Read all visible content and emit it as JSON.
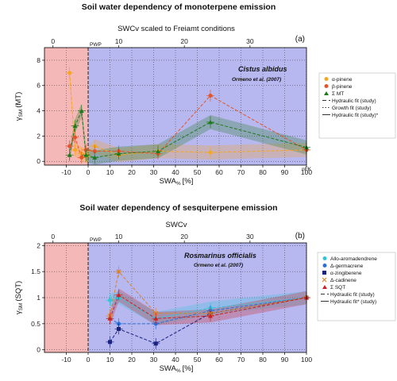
{
  "chart_data": [
    {
      "type": "scatter",
      "title": "Soil water dependency of monoterpene emission",
      "panel_label": "(a)",
      "xlabel": "SWA",
      "xlabel_sub": "%",
      "xlabel_unit": "[%]",
      "ylabel": "γ",
      "ylabel_sub": "SM",
      "ylabel_unit": "(MT)",
      "top_axis_label": "SWCv scaled to Freiamt conditions",
      "top_axis_ticks": [
        0,
        10,
        20,
        30
      ],
      "top_axis_range": [
        -1.3,
        38.6
      ],
      "xlim": [
        -20,
        100
      ],
      "ylim": [
        -0.3,
        9
      ],
      "x_ticks": [
        -10,
        0,
        10,
        20,
        30,
        40,
        50,
        60,
        70,
        80,
        90,
        100
      ],
      "y_ticks": [
        0,
        2,
        4,
        6,
        8
      ],
      "pwp_label": "PWP",
      "pwp_x": 0,
      "nfk_label": "nFK",
      "nfk_x": 100,
      "species_label": "Cistus albidus",
      "reference_label": "Ormeno et al. (2007)",
      "legend_position": "right",
      "series": [
        {
          "name": "α-pinene",
          "color": "#f5a623",
          "marker": "circle",
          "points": [
            [
              -8.5,
              7.0
            ],
            [
              -6,
              0.9
            ],
            [
              -3,
              0.6
            ],
            [
              -1,
              0.4
            ],
            [
              3,
              1.2
            ],
            [
              14,
              0.5
            ],
            [
              32,
              0.8
            ],
            [
              56,
              0.7
            ],
            [
              100,
              0.9
            ]
          ]
        },
        {
          "name": "β-pinene",
          "color": "#e2552a",
          "marker": "circle",
          "points": [
            [
              -8.5,
              1.2
            ],
            [
              -6,
              1.9
            ],
            [
              -3,
              0.3
            ],
            [
              -1,
              0.9
            ],
            [
              3,
              0.8
            ],
            [
              14,
              0.8
            ],
            [
              32,
              0.6
            ],
            [
              56,
              5.2
            ],
            [
              100,
              0.9
            ]
          ]
        },
        {
          "name": "Σ MT",
          "color": "#1f7a1f",
          "marker": "triangle",
          "points": [
            [
              -8.5,
              0.5
            ],
            [
              -6,
              2.8
            ],
            [
              -3,
              4.0
            ],
            [
              -1,
              0.5
            ],
            [
              3,
              0.3
            ],
            [
              14,
              0.6
            ],
            [
              32,
              0.8
            ],
            [
              56,
              3.1
            ],
            [
              100,
              1.1
            ]
          ]
        }
      ],
      "fit_lines": [
        {
          "name": "Hydraulic fit (study)",
          "style": "dashed"
        },
        {
          "name": "Growth fit (study)",
          "style": "dotted"
        },
        {
          "name": "Hydraulic fit (study)*",
          "style": "long-dash"
        }
      ]
    },
    {
      "type": "scatter",
      "title": "Soil water dependency of sesquiterpene emission",
      "panel_label": "(b)",
      "xlabel": "SWA",
      "xlabel_sub": "%",
      "xlabel_unit": "[%]",
      "ylabel": "γ",
      "ylabel_sub": "SM",
      "ylabel_unit": "(SQT)",
      "top_axis_label": "SWCv",
      "top_axis_ticks": [
        0,
        10,
        20,
        30
      ],
      "top_axis_range": [
        -1.3,
        38.6
      ],
      "xlim": [
        -20,
        100
      ],
      "ylim": [
        -0.05,
        2.05
      ],
      "x_ticks": [
        -10,
        0,
        10,
        20,
        30,
        40,
        50,
        60,
        70,
        80,
        90,
        100
      ],
      "y_ticks": [
        0,
        0.5,
        1,
        1.5,
        2
      ],
      "pwp_label": "PWP",
      "pwp_x": 0,
      "species_label": "Rosmarinus officialis",
      "reference_label": "Ormeno et al. (2007)",
      "legend_position": "right",
      "series": [
        {
          "name": "Allo-aromadendrene",
          "color": "#33c4d6",
          "marker": "circle",
          "points": [
            [
              10,
              0.95
            ],
            [
              14,
              1.0
            ],
            [
              31,
              0.6
            ],
            [
              56,
              0.8
            ],
            [
              100,
              1.0
            ]
          ]
        },
        {
          "name": "Δ-germacrene",
          "color": "#2a6fdb",
          "marker": "circle",
          "points": [
            [
              10,
              0.6
            ],
            [
              14,
              0.5
            ],
            [
              31,
              0.5
            ],
            [
              56,
              0.75
            ],
            [
              100,
              1.0
            ]
          ]
        },
        {
          "name": "α-zingiberene",
          "color": "#1a237e",
          "marker": "square",
          "points": [
            [
              10,
              0.15
            ],
            [
              14,
              0.4
            ],
            [
              31,
              0.12
            ],
            [
              56,
              0.7
            ],
            [
              100,
              1.0
            ]
          ]
        },
        {
          "name": "Δ-cadinene",
          "color": "#d9822b",
          "marker": "x",
          "points": [
            [
              10,
              0.65
            ],
            [
              14,
              1.5
            ],
            [
              31,
              0.7
            ],
            [
              56,
              0.7
            ],
            [
              100,
              1.0
            ]
          ]
        },
        {
          "name": "Σ SQT",
          "color": "#cc2222",
          "marker": "triangle",
          "points": [
            [
              10,
              0.6
            ],
            [
              14,
              1.05
            ],
            [
              31,
              0.6
            ],
            [
              56,
              0.65
            ],
            [
              100,
              1.0
            ]
          ]
        }
      ],
      "fit_lines": [
        {
          "name": "Hydraulic fit (study)",
          "style": "dashed"
        },
        {
          "name": "Hydraulic fit* (study)",
          "style": "long-dash"
        }
      ]
    }
  ]
}
